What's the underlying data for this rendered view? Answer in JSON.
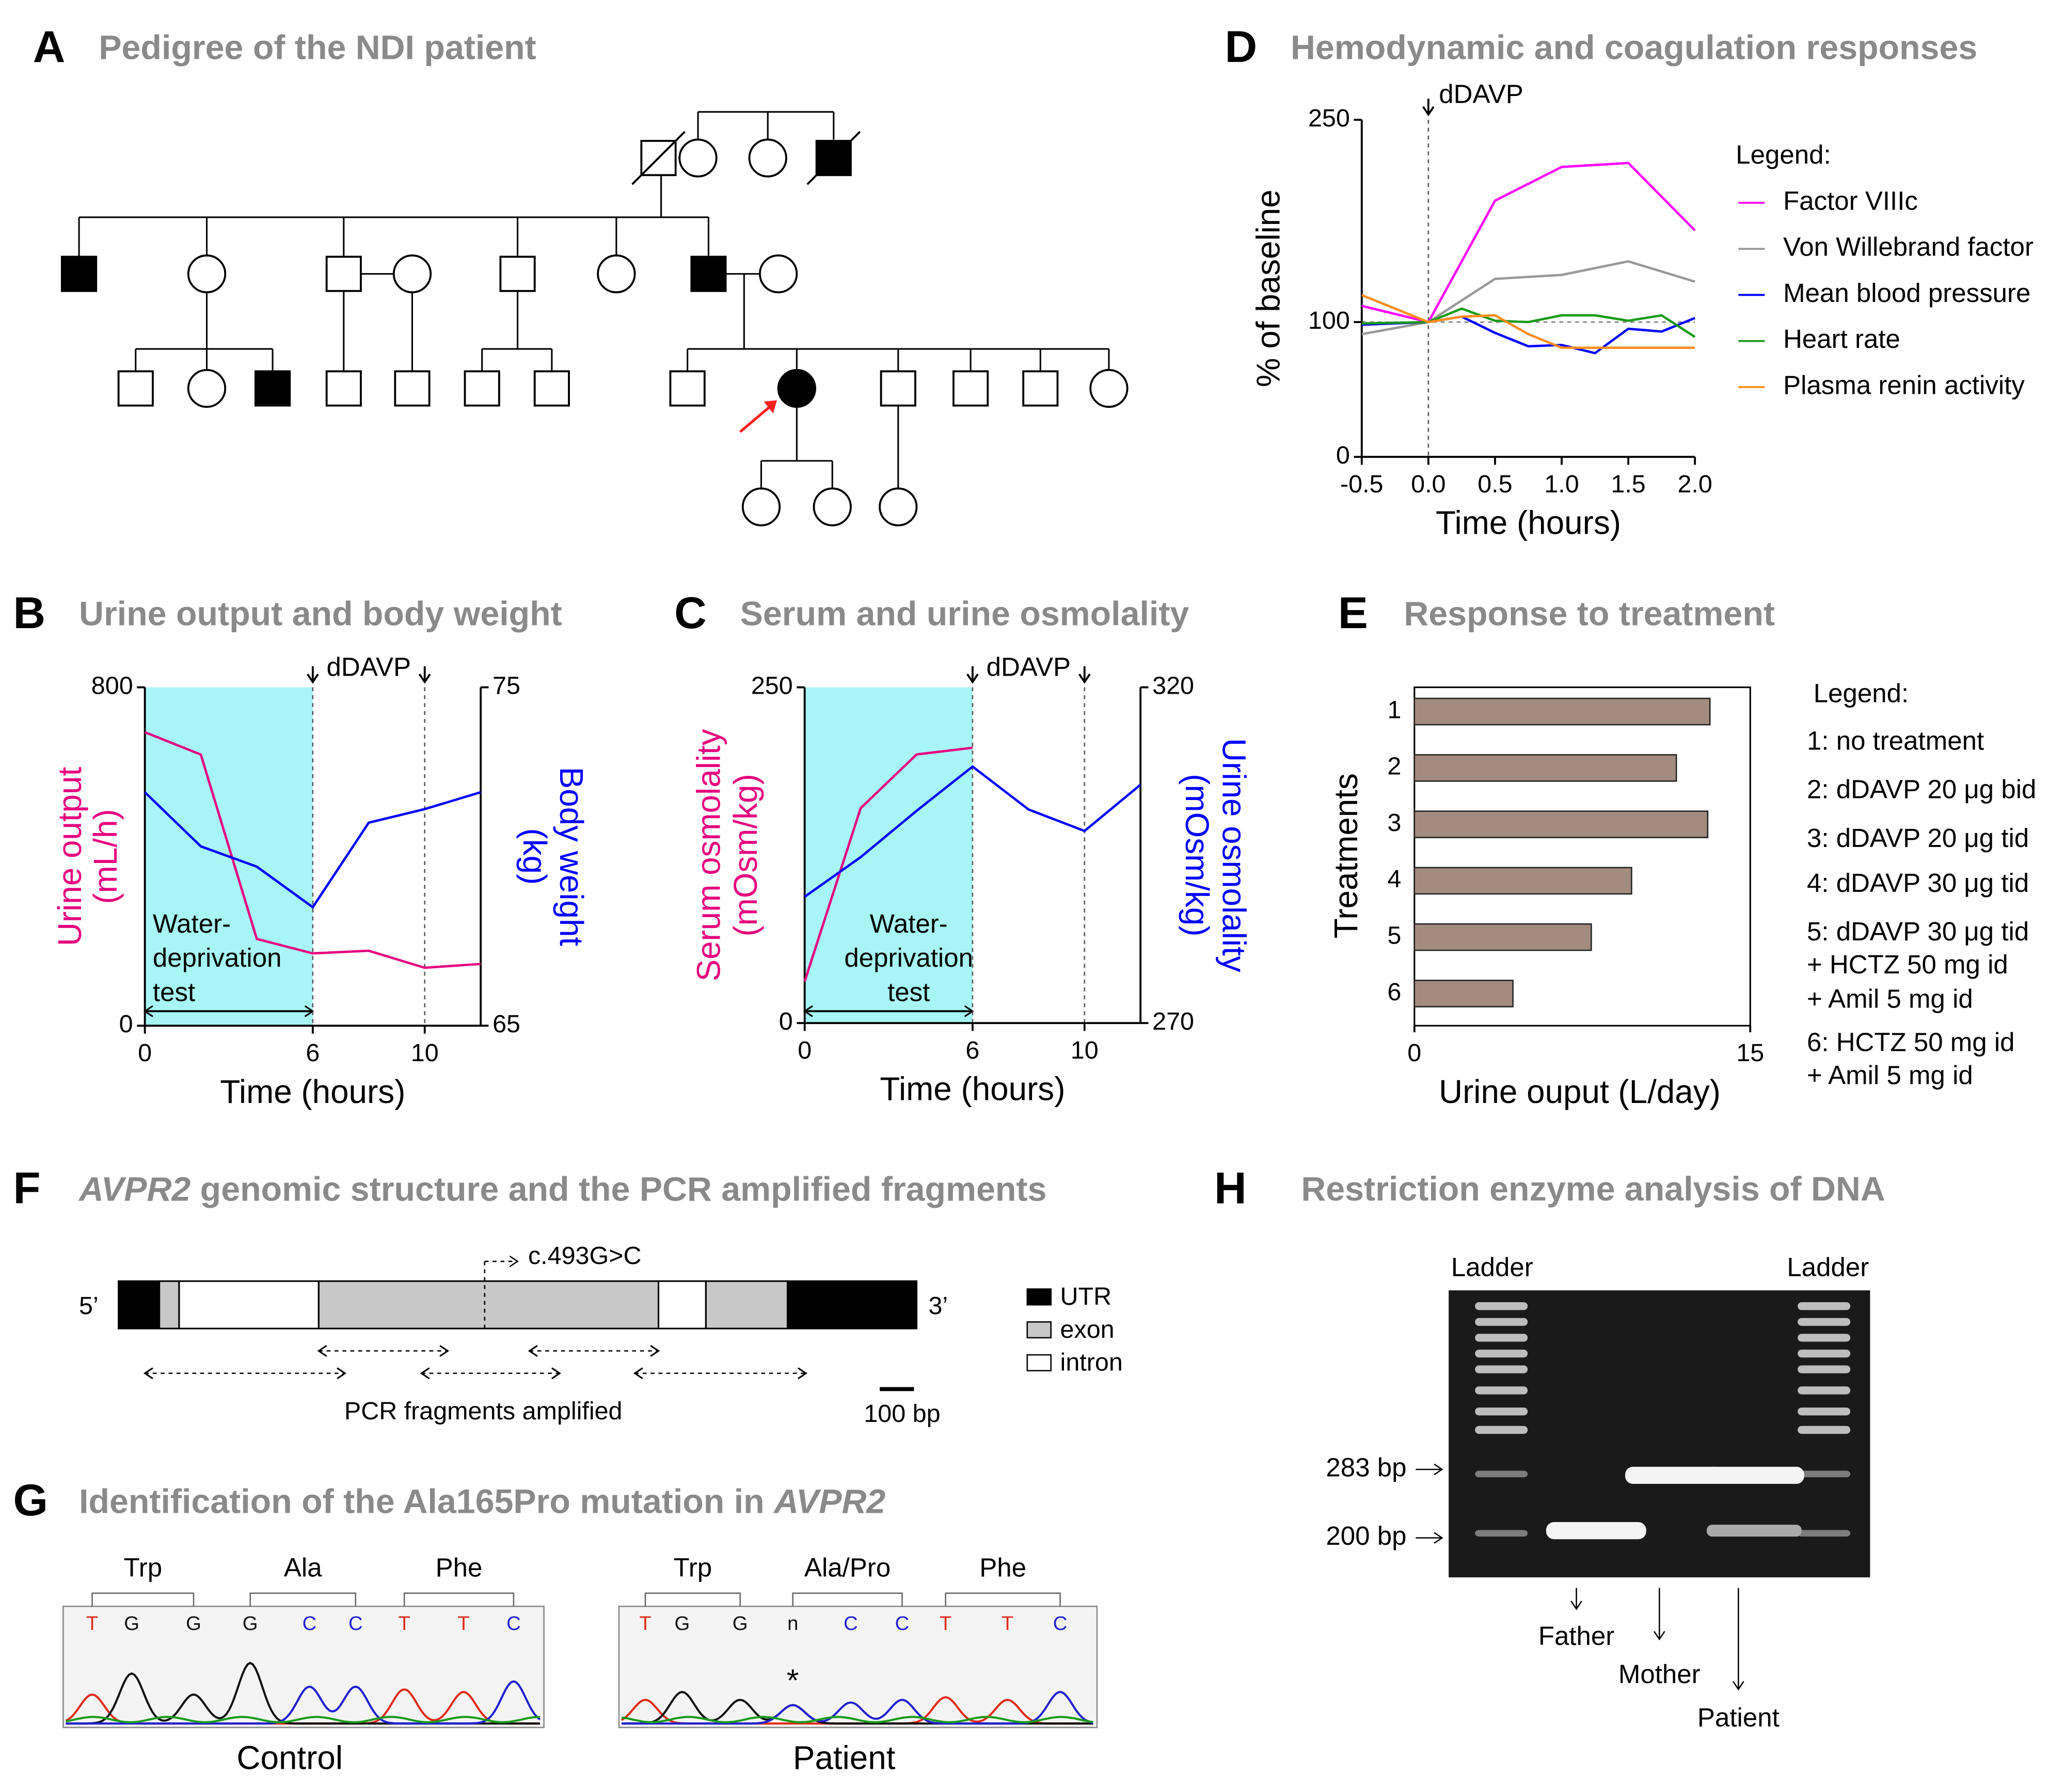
{
  "panels": {
    "A": {
      "letter": "A",
      "title": "Pedigree of the NDI patient"
    },
    "F": {
      "letter": "F",
      "title_italic": "AVPR2",
      "title": " genomic structure and the PCR amplified fragments",
      "five_prime": "5’",
      "three_prime": "3’",
      "mutation": "c.493G>C",
      "legend": [
        "UTR",
        "exon",
        "intron"
      ],
      "fragments_label": "PCR fragments amplified",
      "scale_label": "100 bp"
    },
    "G": {
      "letter": "G",
      "title": "Identification of the Ala165Pro mutation in ",
      "title_italic": "AVPR2",
      "traces": [
        {
          "codons": [
            "Trp",
            "Ala",
            "Phe"
          ],
          "bases": [
            "T",
            "G",
            "G",
            "G",
            "C",
            "C",
            "T",
            "T",
            "C"
          ],
          "label": "Control"
        },
        {
          "codons": [
            "Trp",
            "Ala/Pro",
            "Phe"
          ],
          "bases": [
            "T",
            "G",
            "G",
            "n",
            "C",
            "C",
            "T",
            "T",
            "C"
          ],
          "marker": "*",
          "label": "Patient"
        }
      ]
    },
    "H": {
      "letter": "H",
      "title": "Restriction enzyme analysis of DNA",
      "ladder": "Ladder",
      "sizes": [
        "283 bp",
        "200 bp"
      ],
      "lanes": [
        "Father",
        "Mother",
        "Patient"
      ]
    }
  },
  "chart_data": [
    {
      "type": "line",
      "letter": "B",
      "title": "Urine output and body weight",
      "x_label": "Time (hours)",
      "y_label": [
        "Urine output",
        "(mL/h)"
      ],
      "y_label_color": "#e6007e",
      "y2_label": [
        "Body weight",
        "(kg)"
      ],
      "y2_label_color": "#0000ff",
      "xlim": [
        0,
        12
      ],
      "xticks": [
        0,
        6,
        10
      ],
      "ylim": [
        0,
        800
      ],
      "yticks": [
        0,
        800
      ],
      "y2lim": [
        65,
        75
      ],
      "y2ticks": [
        65,
        75
      ],
      "x": [
        0,
        2,
        4,
        6,
        8,
        10,
        12
      ],
      "series": [
        {
          "color": "#e6007e",
          "values": [
            694,
            641,
            205,
            171,
            177,
            137,
            146
          ]
        },
        {
          "color": "#0000ff",
          "axis": "y2",
          "values": [
            71.9,
            70.3,
            69.7,
            68.5,
            71.0,
            71.4,
            71.9
          ]
        }
      ],
      "shaded_region": [
        0,
        6
      ],
      "shaded_label": [
        "Water-",
        "deprivation",
        "test"
      ],
      "annotation": "dDAVP",
      "annotation_x": [
        6,
        10
      ]
    },
    {
      "type": "line",
      "letter": "C",
      "title": "Serum and urine osmolality",
      "x_label": "Time (hours)",
      "y_label": [
        "Serum osmolality",
        "(mOsm/kg)"
      ],
      "y_label_color": "#e6007e",
      "y2_label": [
        "Urine osmolality",
        "(mOsm/kg)"
      ],
      "y2_label_color": "#0000ff",
      "xlim": [
        0,
        12
      ],
      "xticks": [
        0,
        6,
        10
      ],
      "ylim": [
        0,
        250
      ],
      "yticks": [
        0,
        250
      ],
      "y2lim": [
        270,
        320
      ],
      "y2ticks": [
        270,
        320
      ],
      "x": [
        0,
        2,
        4,
        6,
        8,
        10,
        12
      ],
      "series": [
        {
          "color": "#e6007e",
          "values": [
            31,
            160,
            200,
            205,
            null,
            null,
            null
          ]
        },
        {
          "color": "#0000ff",
          "axis": "y2",
          "values": [
            288.8,
            294.7,
            301.6,
            308.2,
            301.8,
            298.6,
            305.5
          ]
        }
      ],
      "shaded_region": [
        0,
        6
      ],
      "shaded_label": [
        "Water-",
        "deprivation",
        "test"
      ],
      "annotation": "dDAVP",
      "annotation_x": [
        6,
        10
      ]
    },
    {
      "type": "line",
      "letter": "D",
      "title": "Hemodynamic and coagulation responses",
      "x_label": "Time (hours)",
      "y_label": "% of baseline",
      "xlim": [
        -0.5,
        2
      ],
      "xticks": [
        -0.5,
        {
          "value": 0,
          "label": "0.0"
        },
        0.5,
        {
          "value": 1,
          "label": "1.0"
        },
        1.5,
        {
          "value": 2,
          "label": "2.0"
        }
      ],
      "ylim": [
        0,
        250
      ],
      "yticks": [
        0,
        100,
        250
      ],
      "baseline": 100,
      "annotation": "dDAVP",
      "annotation_x": [
        0
      ],
      "legend_title": "Legend:",
      "series": [
        {
          "name": "Factor VIIIc",
          "color": "#ff00ff",
          "x": [
            -0.5,
            0,
            0.5,
            1,
            1.5,
            2
          ],
          "values": [
            112,
            100,
            190,
            215,
            218,
            168
          ]
        },
        {
          "name": "Von Willebrand factor",
          "color": "#999999",
          "x": [
            -0.5,
            0,
            0.5,
            1,
            1.5,
            2
          ],
          "values": [
            91,
            100,
            132,
            135,
            145,
            130
          ]
        },
        {
          "name": "Mean blood pressure",
          "color": "#0000ff",
          "x": [
            -0.5,
            0,
            0.25,
            0.5,
            0.75,
            1,
            1.25,
            1.5,
            1.75,
            2
          ],
          "values": [
            98,
            100,
            104,
            92,
            82,
            83,
            77,
            95,
            93,
            103
          ]
        },
        {
          "name": "Heart rate",
          "color": "#1a9a1a",
          "x": [
            -0.5,
            0,
            0.25,
            0.5,
            0.75,
            1,
            1.25,
            1.5,
            1.75,
            2
          ],
          "values": [
            99,
            100,
            110,
            101,
            100,
            105,
            105,
            101,
            105,
            89
          ]
        },
        {
          "name": "Plasma renin activity",
          "color": "#ff8c1a",
          "x": [
            -0.5,
            0,
            0.25,
            0.5,
            0.75,
            1,
            1.5,
            2
          ],
          "values": [
            120,
            100,
            104,
            105,
            91,
            81,
            81,
            81
          ]
        }
      ]
    },
    {
      "type": "bar",
      "orientation": "horizontal",
      "letter": "E",
      "title": "Response to treatment",
      "x_label": "Urine ouput (L/day)",
      "y_label": "Treatments",
      "categories": [
        "1",
        "2",
        "3",
        "4",
        "5",
        "6"
      ],
      "values": [
        13.2,
        11.7,
        13.1,
        9.7,
        7.9,
        4.4
      ],
      "color": "#a38b7e",
      "xlim": [
        0,
        15
      ],
      "xticks": [
        0,
        15
      ],
      "legend_title": "Legend:",
      "legend": [
        "1: no treatment",
        "2: dDAVP 20 μg bid",
        "3: dDAVP 20 μg tid",
        "4: dDAVP 30 μg tid",
        "5: dDAVP 30 μg tid",
        "+ HCTZ 50 mg id",
        "+ Amil 5 mg id",
        "6: HCTZ 50 mg id",
        "+ Amil 5 mg id"
      ]
    }
  ]
}
